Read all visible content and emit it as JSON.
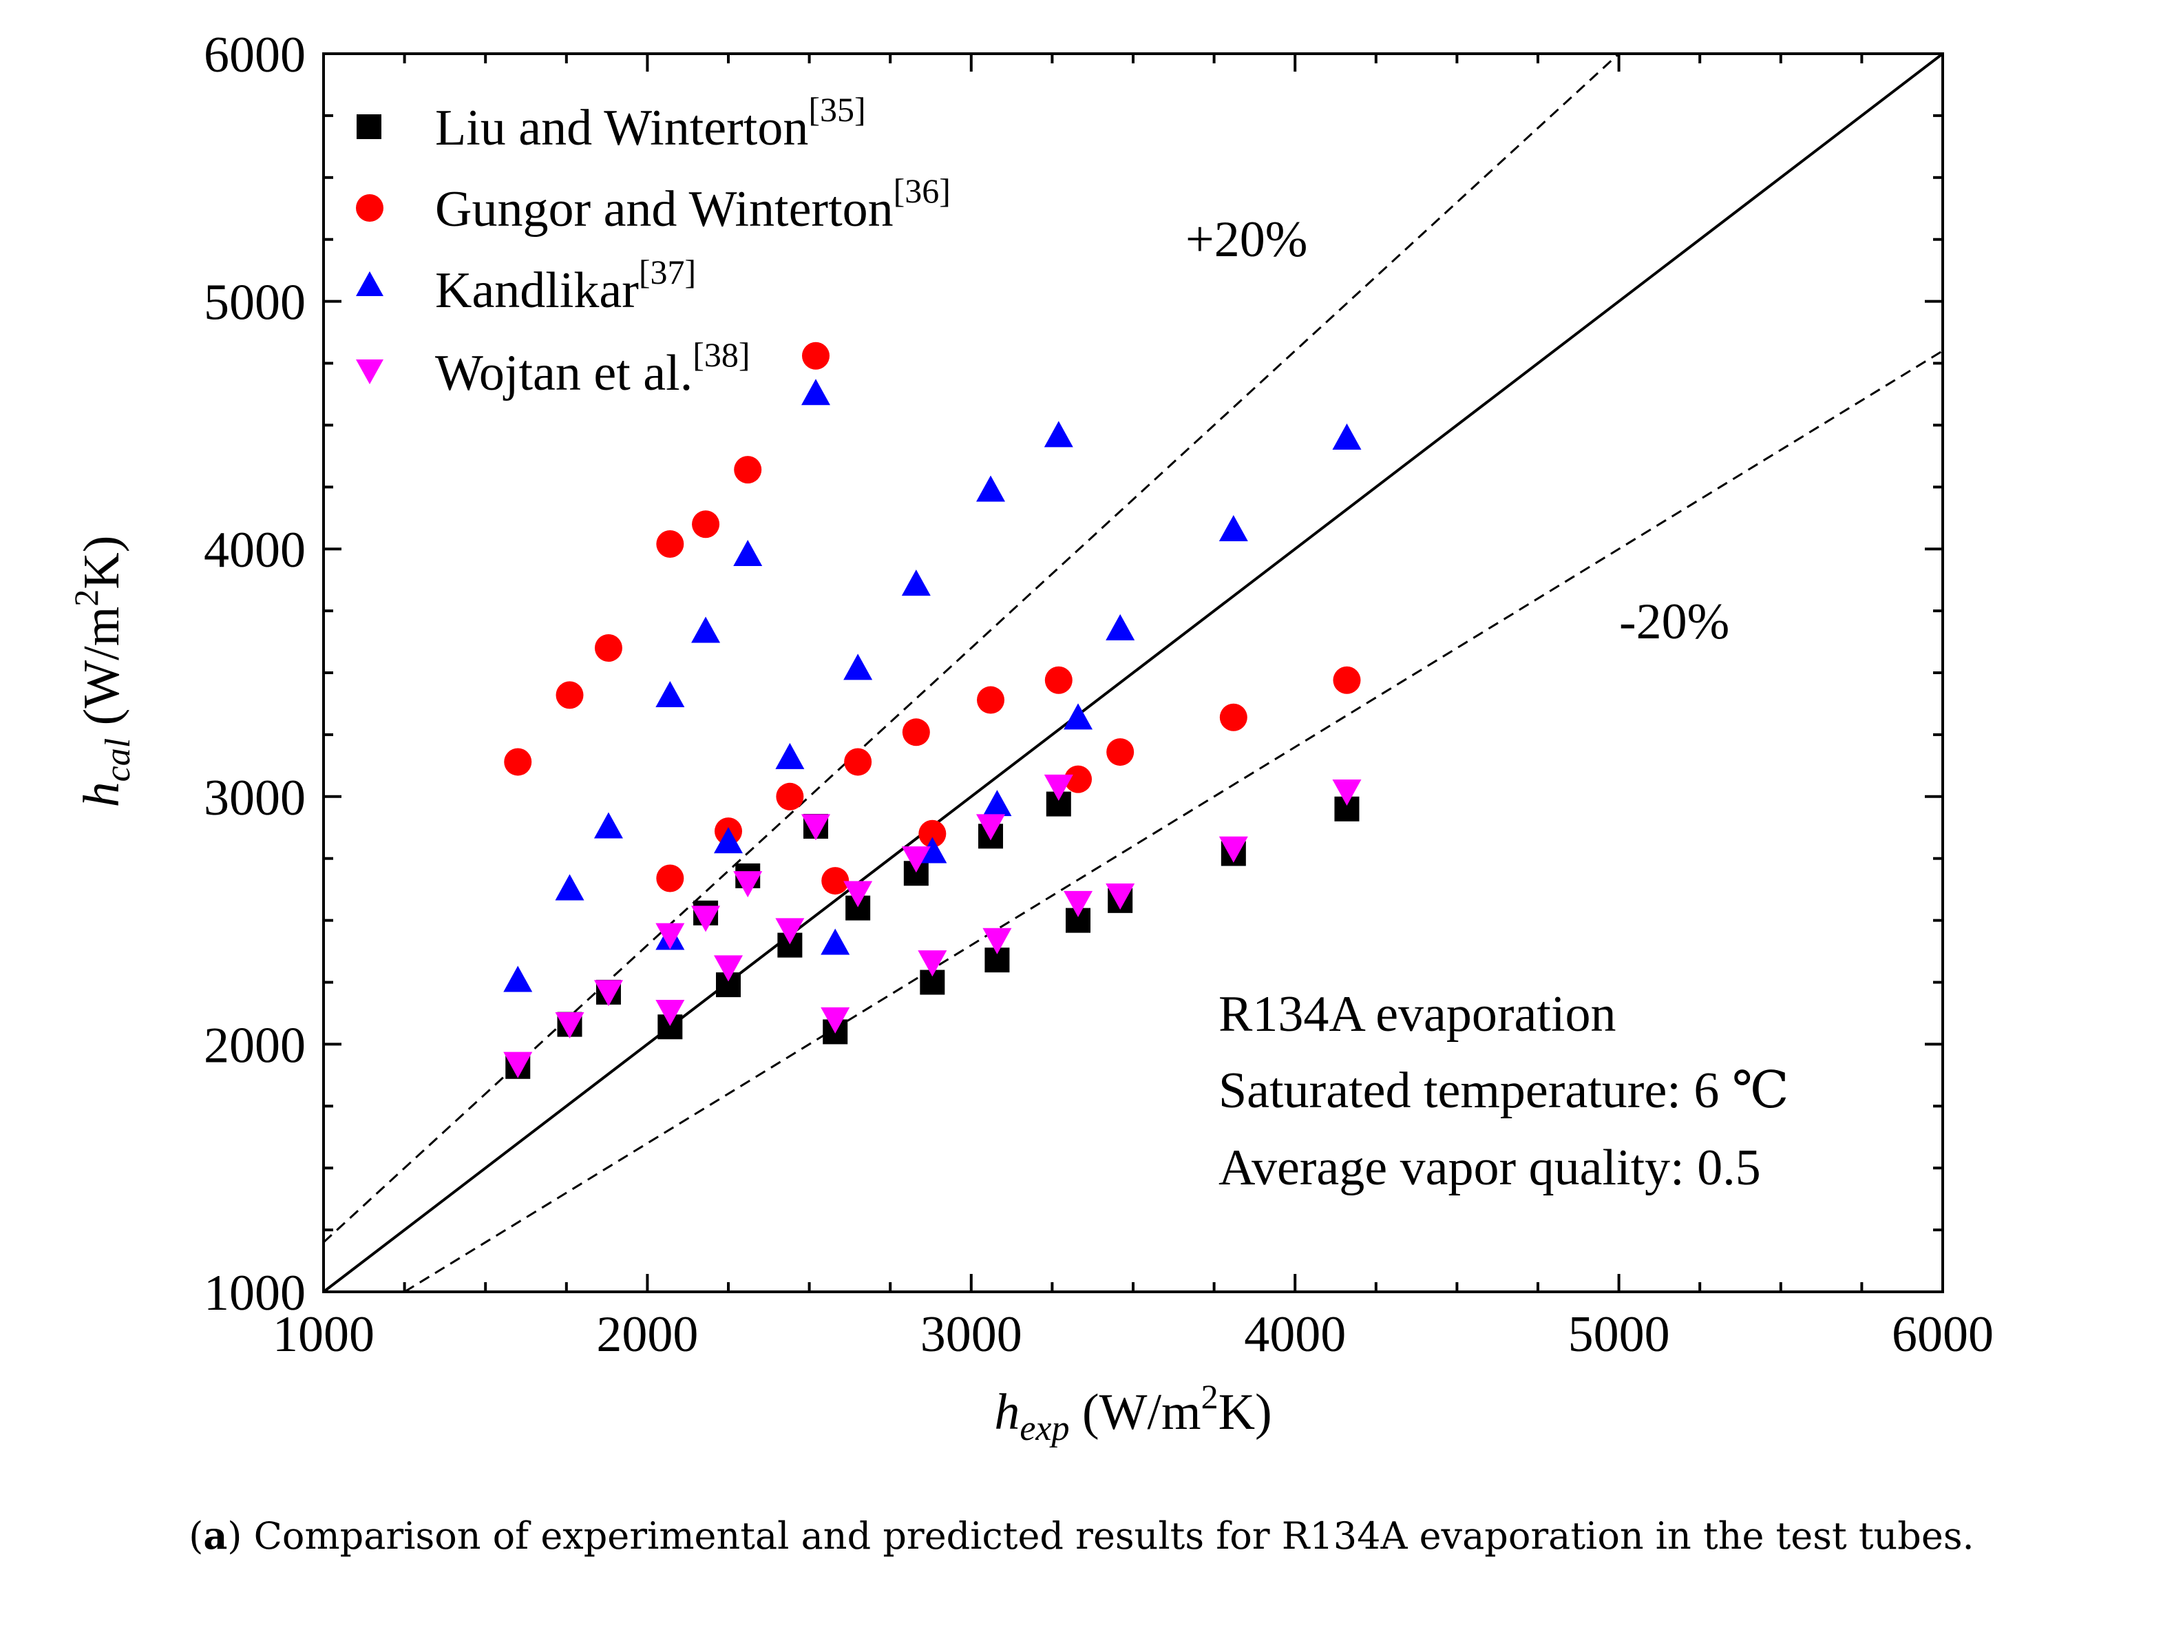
{
  "chart_data": {
    "type": "scatter",
    "x_label": {
      "symbol": "h",
      "subscript": "exp",
      "unit_prefix": " (W/m",
      "unit_sup": "2",
      "unit_suffix": "K)"
    },
    "y_label": {
      "symbol": "h",
      "subscript": "cal",
      "unit_prefix": " (W/m",
      "unit_sup": "2",
      "unit_suffix": "K)"
    },
    "xlim": [
      1000,
      6000
    ],
    "ylim": [
      1000,
      6000
    ],
    "x_ticks": [
      "1000",
      "2000",
      "3000",
      "4000",
      "5000",
      "6000"
    ],
    "y_ticks": [
      "1000",
      "2000",
      "3000",
      "4000",
      "5000",
      "6000"
    ],
    "grid": false,
    "legend_position": "top-left",
    "reference_lines": [
      {
        "name": "parity",
        "slope": 1.0,
        "style": "solid"
      },
      {
        "name": "plus-20",
        "slope": 1.2,
        "style": "dashed",
        "label": "+20%"
      },
      {
        "name": "minus-20",
        "slope": 0.8,
        "style": "dashed",
        "label": "-20%"
      }
    ],
    "annotations": [
      "R134A evaporation",
      "Saturated temperature: 6 ℃",
      "Average vapor quality: 0.5"
    ],
    "series": [
      {
        "name": "Liu and Winterton",
        "ref": "[35]",
        "marker": "square",
        "color": "#000000",
        "x": [
          1600,
          1760,
          1880,
          2070,
          2180,
          2250,
          2310,
          2440,
          2520,
          2580,
          2650,
          2830,
          2880,
          3060,
          3080,
          3270,
          3330,
          3460,
          3810,
          4160
        ],
        "y": [
          1910,
          2080,
          2210,
          2070,
          2530,
          2240,
          2680,
          2400,
          2880,
          2050,
          2550,
          2690,
          2250,
          2840,
          2340,
          2970,
          2500,
          2580,
          2770,
          2950
        ]
      },
      {
        "name": "Gungor and Winterton",
        "ref": "[36]",
        "marker": "circle",
        "color": "#ff0000",
        "x": [
          1600,
          1760,
          1880,
          2070,
          2070,
          2180,
          2250,
          2310,
          2440,
          2520,
          2580,
          2650,
          2830,
          2880,
          3060,
          3270,
          3330,
          3460,
          3810,
          4160
        ],
        "y": [
          3140,
          3410,
          3600,
          4020,
          2670,
          4100,
          2860,
          4320,
          3000,
          4780,
          2660,
          3140,
          3260,
          2850,
          3390,
          3470,
          3070,
          3180,
          3320,
          3470
        ]
      },
      {
        "name": "Kandlikar",
        "ref": "[37]",
        "marker": "triangle-up",
        "color": "#0000ff",
        "x": [
          1600,
          1760,
          1880,
          2070,
          2070,
          2180,
          2250,
          2310,
          2440,
          2520,
          2580,
          2650,
          2830,
          2880,
          3060,
          3080,
          3270,
          3330,
          3460,
          3810,
          4160
        ],
        "y": [
          2250,
          2620,
          2870,
          3400,
          2420,
          3660,
          2810,
          3970,
          3150,
          4620,
          2400,
          3510,
          3850,
          2770,
          4230,
          2960,
          4450,
          3310,
          3670,
          4070,
          4440
        ]
      },
      {
        "name": "Wojtan et al.",
        "ref": "[38]",
        "marker": "triangle-down",
        "color": "#ff00ff",
        "x": [
          1600,
          1760,
          1880,
          2070,
          2070,
          2180,
          2250,
          2310,
          2440,
          2520,
          2580,
          2650,
          2830,
          2880,
          3060,
          3080,
          3270,
          3330,
          3460,
          3810,
          4160
        ],
        "y": [
          1930,
          2090,
          2220,
          2450,
          2140,
          2520,
          2320,
          2660,
          2470,
          2890,
          2110,
          2620,
          2760,
          2340,
          2890,
          2430,
          3050,
          2580,
          2610,
          2800,
          3030
        ]
      }
    ]
  },
  "caption": {
    "label": "a",
    "text": " Comparison of experimental and predicted results for R134A evaporation in the test tubes."
  }
}
